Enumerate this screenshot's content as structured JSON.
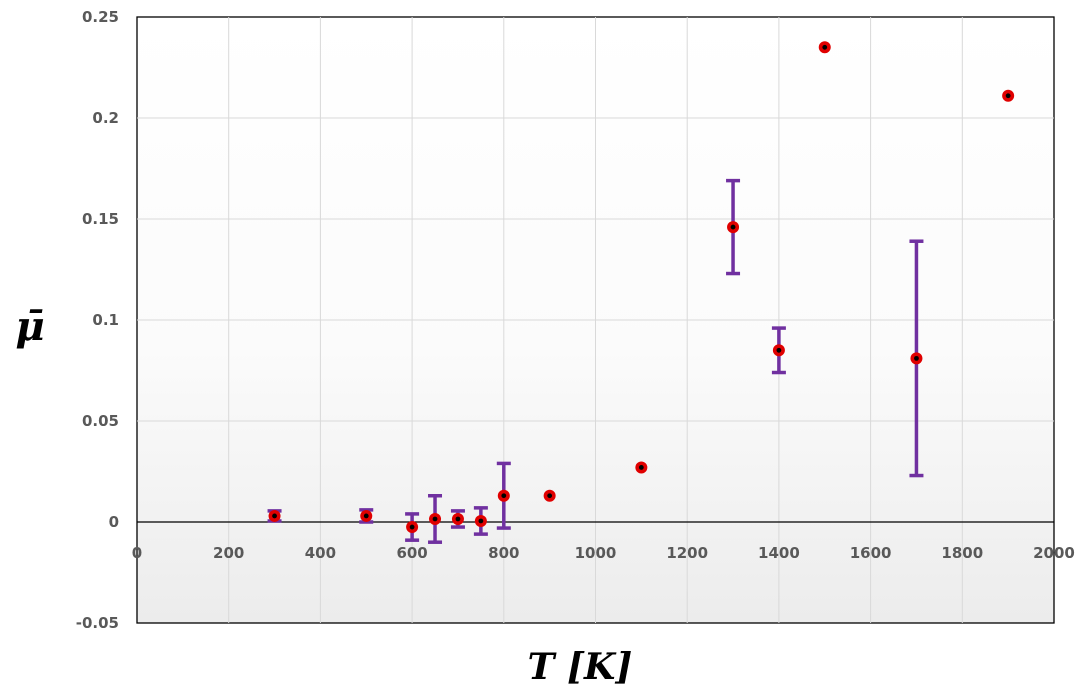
{
  "chart_data": {
    "type": "scatter",
    "title": "",
    "xlabel": "T [K]",
    "ylabel": "μ̄",
    "xlim": [
      0,
      2000
    ],
    "ylim": [
      -0.05,
      0.25
    ],
    "x_ticks": [
      0,
      200,
      400,
      600,
      800,
      1000,
      1200,
      1400,
      1600,
      1800,
      2000
    ],
    "y_ticks": [
      -0.05,
      0,
      0.05,
      0.1,
      0.15,
      0.2,
      0.25
    ],
    "x_tick_labels": [
      "0",
      "200",
      "400",
      "600",
      "800",
      "1000",
      "1200",
      "1400",
      "1600",
      "1800",
      "2000"
    ],
    "y_tick_labels": [
      "-0.05",
      "0",
      "0.05",
      "0.1",
      "0.15",
      "0.2",
      "0.25"
    ],
    "grid": true,
    "marker_color": "#e00000",
    "marker_center_color": "#000000",
    "errorbar_color": "#7030a0",
    "points": [
      {
        "x": 300,
        "y": 0.003,
        "err": 0.0025
      },
      {
        "x": 500,
        "y": 0.003,
        "err": 0.003
      },
      {
        "x": 600,
        "y": -0.0025,
        "err": 0.0065
      },
      {
        "x": 650,
        "y": 0.0015,
        "err": 0.0115
      },
      {
        "x": 700,
        "y": 0.0015,
        "err": 0.004
      },
      {
        "x": 750,
        "y": 0.0005,
        "err": 0.0065
      },
      {
        "x": 800,
        "y": 0.013,
        "err": 0.016
      },
      {
        "x": 900,
        "y": 0.013,
        "err": 0
      },
      {
        "x": 1100,
        "y": 0.027,
        "err": 0
      },
      {
        "x": 1300,
        "y": 0.146,
        "err": 0.023
      },
      {
        "x": 1400,
        "y": 0.085,
        "err": 0.011
      },
      {
        "x": 1500,
        "y": 0.235,
        "err": 0
      },
      {
        "x": 1700,
        "y": 0.081,
        "err": 0.058
      },
      {
        "x": 1900,
        "y": 0.211,
        "err": 0
      }
    ]
  }
}
